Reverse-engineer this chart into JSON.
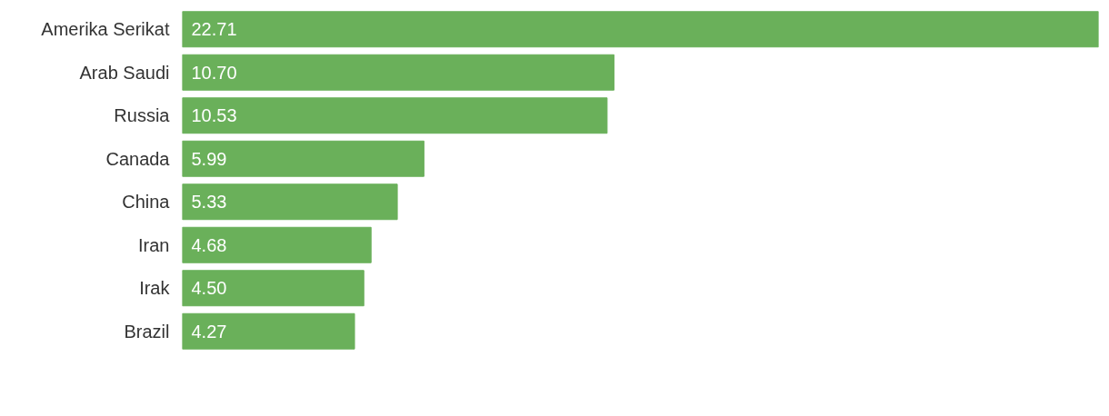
{
  "chart_data": {
    "type": "bar",
    "orientation": "horizontal",
    "categories": [
      "Amerika Serikat",
      "Arab Saudi",
      "Russia",
      "Canada",
      "China",
      "Iran",
      "Irak",
      "Brazil"
    ],
    "values": [
      22.71,
      10.7,
      10.53,
      5.99,
      5.33,
      4.68,
      4.5,
      4.27
    ],
    "value_labels": [
      "22.71",
      "10.70",
      "10.53",
      "5.99",
      "5.33",
      "4.68",
      "4.50",
      "4.27"
    ],
    "color": "#6ab05a",
    "grid": false
  }
}
